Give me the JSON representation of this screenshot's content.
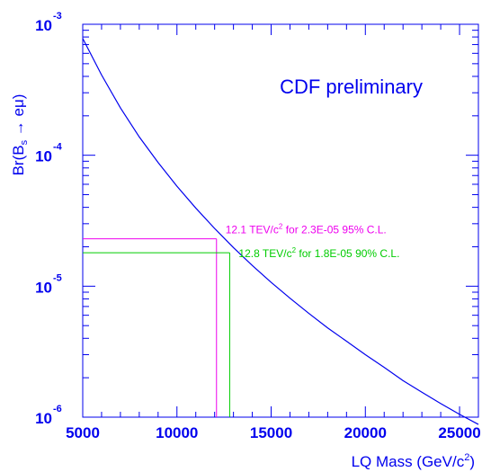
{
  "chart_data": {
    "type": "line",
    "title": "",
    "xlabel": "LQ Mass (GeV/c²)",
    "ylabel": "Br(Bs → eμ)",
    "xlim": [
      5000,
      26000
    ],
    "ylim": [
      1e-06,
      0.001
    ],
    "yscale": "log",
    "xticks": [
      "5000",
      "10000",
      "15000",
      "20000",
      "25000"
    ],
    "yticks": [
      {
        "base": "10",
        "exp": "-3",
        "value": 0.001
      },
      {
        "base": "10",
        "exp": "-4",
        "value": 0.0001
      },
      {
        "base": "10",
        "exp": "-5",
        "value": 1e-05
      },
      {
        "base": "10",
        "exp": "-6",
        "value": 1e-06
      }
    ],
    "grid": false,
    "series": [
      {
        "color": "#0000ee",
        "x": [
          5000,
          6000,
          7000,
          8000,
          9000,
          10000,
          11000,
          12000,
          13000,
          14000,
          15000,
          16000,
          17000,
          18000,
          19000,
          20000,
          21000,
          22000,
          23000,
          24000,
          25000,
          26000
        ],
        "y": [
          0.00078,
          0.00041,
          0.00023,
          0.000138,
          8.8e-05,
          5.8e-05,
          3.95e-05,
          2.76e-05,
          1.97e-05,
          1.44e-05,
          1.07e-05,
          8.1e-06,
          6.2e-06,
          4.8e-06,
          3.8e-06,
          3e-06,
          2.4e-06,
          1.9e-06,
          1.55e-06,
          1.27e-06,
          1.05e-06,
          8.8e-07
        ]
      }
    ],
    "annotations": [
      {
        "text": "CDF preliminary",
        "color": "#0000ee"
      },
      {
        "text_pre": "12.1 TEV/c",
        "text_sup": "2",
        "text_post": " for 2.3E-05 95% C.L.",
        "color": "#ee00ee",
        "x": 12100,
        "y": 2.3e-05
      },
      {
        "text_pre": "12.8 TEV/c",
        "text_sup": "2",
        "text_post": " for 1.8E-05 90% C.L.",
        "color": "#00cc00",
        "x": 12800,
        "y": 1.8e-05
      }
    ]
  }
}
